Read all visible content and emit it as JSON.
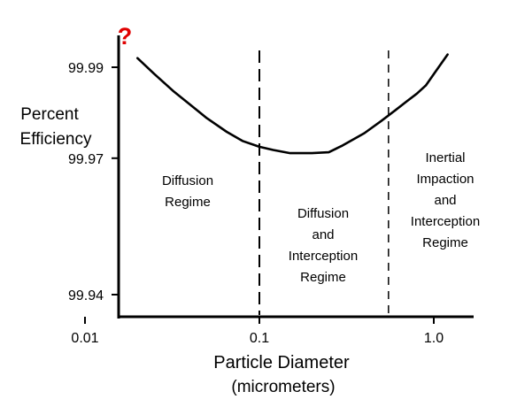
{
  "chart_data": {
    "type": "line",
    "title": "",
    "xlabel": [
      "Particle Diameter",
      "(micrometers)"
    ],
    "ylabel": [
      "Percent",
      "Efficiency"
    ],
    "x_scale": "log",
    "xlim": [
      0.01,
      1.5
    ],
    "ylim": [
      99.94,
      99.99
    ],
    "grid": false,
    "legend": "none",
    "xticks": [
      {
        "value": 0.01,
        "label": "0.01"
      },
      {
        "value": 0.1,
        "label": "0.1"
      },
      {
        "value": 1.0,
        "label": "1.0"
      }
    ],
    "yticks": [
      {
        "value": 99.99,
        "label": "99.99"
      },
      {
        "value": 99.97,
        "label": "99.97"
      },
      {
        "value": 99.94,
        "label": "99.94"
      }
    ],
    "y_axis_marker": "?",
    "series": [
      {
        "x": [
          0.02,
          0.025,
          0.032,
          0.04,
          0.05,
          0.065,
          0.08,
          0.1,
          0.12,
          0.15,
          0.2,
          0.25,
          0.3,
          0.4,
          0.5,
          0.6,
          0.7,
          0.8,
          0.9,
          1.0,
          1.2
        ],
        "y": [
          99.992,
          99.9885,
          99.9848,
          99.9818,
          99.9788,
          99.9758,
          99.9738,
          99.9725,
          99.9718,
          99.9711,
          99.9711,
          99.9713,
          99.9728,
          99.9755,
          99.9782,
          99.9805,
          99.9825,
          99.9842,
          99.986,
          99.9885,
          99.9928
        ]
      }
    ],
    "regime_boundaries": [
      0.1,
      0.55
    ],
    "regions": [
      {
        "x_range": [
          0.01,
          0.1
        ],
        "lines": [
          "Diffusion",
          "Regime"
        ]
      },
      {
        "x_range": [
          0.1,
          0.55
        ],
        "lines": [
          "Diffusion",
          "and",
          "Interception",
          "Regime"
        ]
      },
      {
        "x_range": [
          0.55,
          1.5
        ],
        "lines": [
          "Inertial",
          "Impaction",
          "and",
          "Interception",
          "Regime"
        ]
      }
    ],
    "colors": {
      "line": "#000000",
      "axis": "#000000",
      "text": "#000000",
      "marker": "#e00000"
    }
  }
}
